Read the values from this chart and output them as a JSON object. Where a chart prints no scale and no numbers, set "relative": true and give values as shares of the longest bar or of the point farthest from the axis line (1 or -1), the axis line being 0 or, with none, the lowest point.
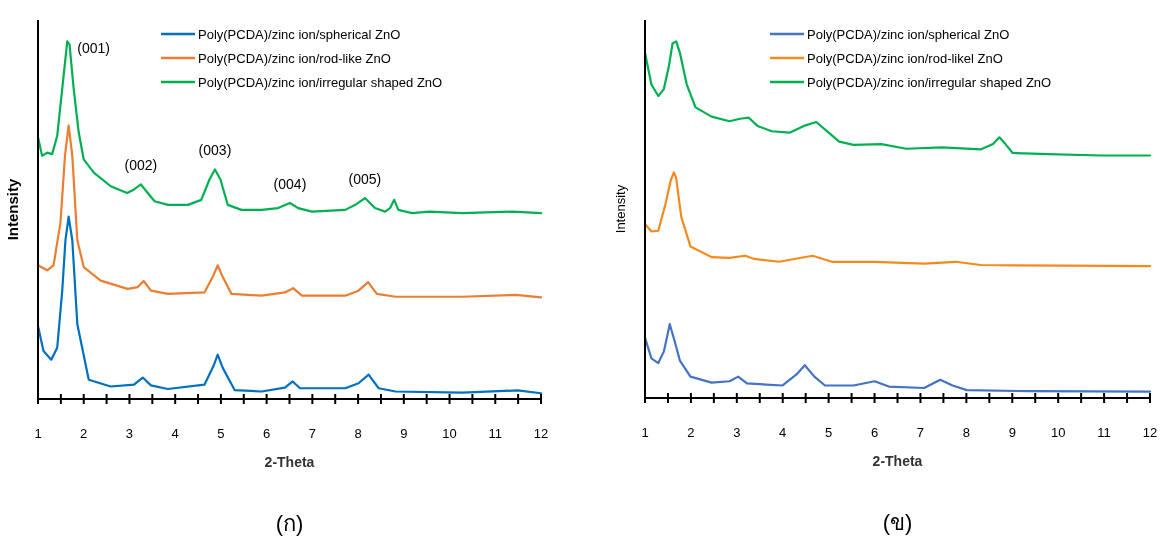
{
  "chart_data": [
    {
      "type": "line",
      "title": "(ก)",
      "xlabel": "2-Theta",
      "ylabel": "Intensity",
      "relative": true,
      "xlim": [
        1,
        12
      ],
      "xticks": [
        1,
        {
          "value": 1.5,
          "label": null
        },
        2,
        {
          "value": 2.5,
          "label": null
        },
        3,
        {
          "value": 3.5,
          "label": null
        },
        4,
        {
          "value": 4.5,
          "label": null
        },
        5,
        {
          "value": 5.5,
          "label": null
        },
        6,
        {
          "value": 6.5,
          "label": null
        },
        7,
        {
          "value": 7.5,
          "label": null
        },
        8,
        {
          "value": 8.5,
          "label": null
        },
        9,
        {
          "value": 9.5,
          "label": null
        },
        10,
        {
          "value": 10.5,
          "label": null
        },
        11,
        {
          "value": 11.5,
          "label": null
        },
        12
      ],
      "legend": "top right",
      "annotations": [
        {
          "text": "(001)",
          "x": 1.64,
          "y": 1.0
        },
        {
          "text": "(002)",
          "x": 3.25,
          "y": 0.6
        },
        {
          "text": "(003)",
          "x": 4.87,
          "y": 0.642
        },
        {
          "text": "(004)",
          "x": 6.51,
          "y": 0.548
        },
        {
          "text": "(005)",
          "x": 8.15,
          "y": 0.562
        }
      ],
      "series": [
        {
          "name": "Poly(PCDA)/zinc ion/spherical ZnO",
          "color": "#0070c0",
          "x": [
            1.0,
            1.12,
            1.29,
            1.42,
            1.53,
            1.6,
            1.67,
            1.75,
            1.86,
            2.11,
            2.59,
            3.1,
            3.29,
            3.47,
            3.84,
            4.64,
            4.85,
            4.93,
            5.04,
            5.3,
            5.89,
            6.4,
            6.57,
            6.73,
            7.72,
            8.01,
            8.23,
            8.45,
            8.82,
            10.28,
            11.49,
            12.0
          ],
          "values": [
            0.204,
            0.134,
            0.11,
            0.143,
            0.303,
            0.444,
            0.51,
            0.444,
            0.209,
            0.054,
            0.035,
            0.04,
            0.06,
            0.038,
            0.028,
            0.04,
            0.096,
            0.124,
            0.087,
            0.025,
            0.021,
            0.032,
            0.049,
            0.03,
            0.03,
            0.044,
            0.068,
            0.03,
            0.021,
            0.018,
            0.024,
            0.016
          ]
        },
        {
          "name": "Poly(PCDA)/zinc ion/rod-like ZnO",
          "color": "#ed7d31",
          "x": [
            1.0,
            1.2,
            1.34,
            1.49,
            1.59,
            1.67,
            1.75,
            1.86,
            2.0,
            2.37,
            2.96,
            3.18,
            3.31,
            3.47,
            3.84,
            4.64,
            4.82,
            4.93,
            5.04,
            5.23,
            5.89,
            6.4,
            6.58,
            6.77,
            7.72,
            8.01,
            8.22,
            8.41,
            8.82,
            10.28,
            11.45,
            12.0
          ],
          "values": [
            0.374,
            0.36,
            0.374,
            0.492,
            0.68,
            0.765,
            0.68,
            0.444,
            0.369,
            0.331,
            0.308,
            0.313,
            0.33,
            0.303,
            0.294,
            0.298,
            0.341,
            0.374,
            0.341,
            0.294,
            0.289,
            0.298,
            0.31,
            0.289,
            0.289,
            0.303,
            0.327,
            0.294,
            0.286,
            0.286,
            0.291,
            0.284
          ]
        },
        {
          "name": "Poly(PCDA)/zinc ion/irregular shaped ZnO",
          "color": "#00b050",
          "x": [
            1.0,
            1.09,
            1.2,
            1.31,
            1.42,
            1.53,
            1.64,
            1.69,
            1.78,
            1.89,
            2.0,
            2.22,
            2.59,
            2.95,
            3.1,
            3.25,
            3.4,
            3.55,
            3.84,
            4.28,
            4.57,
            4.75,
            4.87,
            4.99,
            5.15,
            5.45,
            5.89,
            6.25,
            6.51,
            6.69,
            6.99,
            7.72,
            7.94,
            8.15,
            8.37,
            8.59,
            8.7,
            8.79,
            8.88,
            9.18,
            9.55,
            10.28,
            11.38,
            12.0
          ],
          "values": [
            0.732,
            0.68,
            0.689,
            0.685,
            0.736,
            0.868,
            1.0,
            0.991,
            0.868,
            0.746,
            0.67,
            0.633,
            0.595,
            0.576,
            0.586,
            0.6,
            0.576,
            0.553,
            0.543,
            0.543,
            0.557,
            0.614,
            0.642,
            0.614,
            0.543,
            0.529,
            0.529,
            0.534,
            0.548,
            0.534,
            0.524,
            0.529,
            0.543,
            0.562,
            0.534,
            0.524,
            0.534,
            0.557,
            0.529,
            0.52,
            0.524,
            0.52,
            0.524,
            0.52
          ]
        }
      ]
    },
    {
      "type": "line",
      "title": "(ข)",
      "xlabel": "2-Theta",
      "ylabel": "Intensity",
      "relative": true,
      "xlim": [
        1,
        12
      ],
      "xticks": [
        1,
        {
          "value": 1.5,
          "label": null
        },
        2,
        {
          "value": 2.5,
          "label": null
        },
        3,
        {
          "value": 3.5,
          "label": null
        },
        4,
        {
          "value": 4.5,
          "label": null
        },
        5,
        {
          "value": 5.5,
          "label": null
        },
        6,
        {
          "value": 6.5,
          "label": null
        },
        7,
        {
          "value": 7.5,
          "label": null
        },
        8,
        {
          "value": 8.5,
          "label": null
        },
        9,
        {
          "value": 9.5,
          "label": null
        },
        10,
        {
          "value": 10.5,
          "label": null
        },
        11,
        {
          "value": 11.5,
          "label": null
        },
        12
      ],
      "legend": "top right",
      "series": [
        {
          "name": "Poly(PCDA)/zinc ion/spherical ZnO",
          "color": "#4472c4",
          "x": [
            1.0,
            1.14,
            1.29,
            1.41,
            1.54,
            1.64,
            1.76,
            1.99,
            2.45,
            2.84,
            3.03,
            3.22,
            3.99,
            4.3,
            4.48,
            4.69,
            4.92,
            5.54,
            6.0,
            6.31,
            7.08,
            7.43,
            7.7,
            8.01,
            9.39,
            12.0
          ],
          "values": [
            0.169,
            0.111,
            0.098,
            0.13,
            0.207,
            0.162,
            0.105,
            0.06,
            0.043,
            0.047,
            0.06,
            0.041,
            0.035,
            0.066,
            0.092,
            0.06,
            0.035,
            0.035,
            0.047,
            0.032,
            0.028,
            0.051,
            0.035,
            0.022,
            0.019,
            0.018
          ]
        },
        {
          "name": "Poly(PCDA)/zinc ion/rod-likel ZnO",
          "color": "#f38a1c",
          "x": [
            1.0,
            1.14,
            1.29,
            1.45,
            1.56,
            1.63,
            1.68,
            1.79,
            1.99,
            2.45,
            2.84,
            3.18,
            3.38,
            3.92,
            4.65,
            5.07,
            6.0,
            7.08,
            7.77,
            8.31,
            10.17,
            12.0
          ],
          "values": [
            0.488,
            0.467,
            0.469,
            0.546,
            0.61,
            0.633,
            0.616,
            0.508,
            0.425,
            0.395,
            0.393,
            0.399,
            0.39,
            0.382,
            0.399,
            0.382,
            0.382,
            0.377,
            0.382,
            0.373,
            0.371,
            0.37
          ]
        },
        {
          "name": "Poly(PCDA)/zinc ion/irregular shaped ZnO",
          "color": "#00b050",
          "x": [
            1.0,
            1.14,
            1.29,
            1.41,
            1.52,
            1.6,
            1.68,
            1.76,
            1.91,
            2.1,
            2.45,
            2.84,
            3.07,
            3.26,
            3.45,
            3.76,
            4.15,
            4.46,
            4.73,
            5.0,
            5.23,
            5.54,
            6.15,
            6.69,
            7.47,
            8.31,
            8.58,
            8.72,
            8.85,
            9.01,
            9.78,
            10.94,
            12.0
          ],
          "values": [
            0.968,
            0.879,
            0.847,
            0.866,
            0.93,
            0.994,
            1.0,
            0.968,
            0.879,
            0.815,
            0.789,
            0.776,
            0.783,
            0.786,
            0.763,
            0.748,
            0.744,
            0.763,
            0.774,
            0.744,
            0.719,
            0.71,
            0.712,
            0.699,
            0.703,
            0.697,
            0.712,
            0.731,
            0.712,
            0.687,
            0.684,
            0.68,
            0.68
          ]
        }
      ]
    }
  ]
}
